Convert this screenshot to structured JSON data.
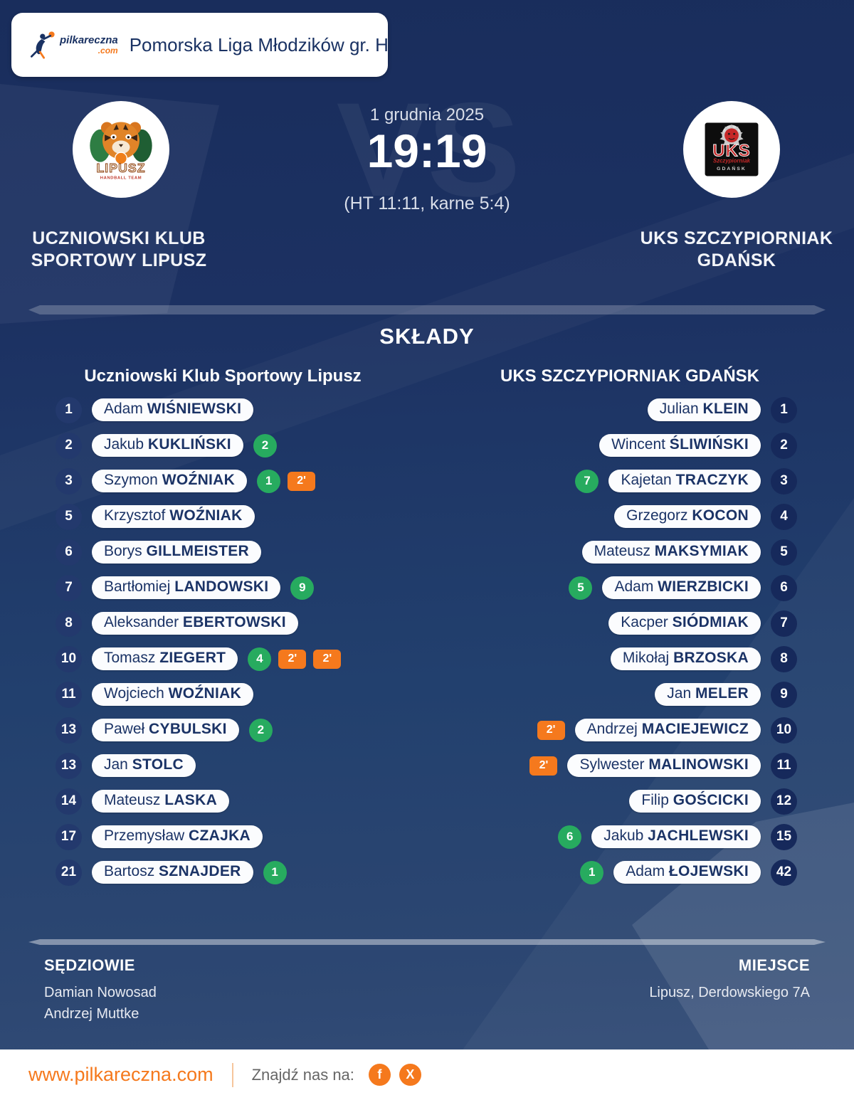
{
  "header": {
    "logo_text": "pilkareczna",
    "logo_tld": ".com",
    "title": "Pomorska Liga Młodzików gr. H"
  },
  "match": {
    "date": "1 grudnia 2025",
    "score": "19:19",
    "halftime": "(HT 11:11, karne 5:4)",
    "vs_watermark": "VS"
  },
  "teams": {
    "home": {
      "name": "UCZNIOWSKI KLUB SPORTOWY LIPUSZ",
      "logo_text": "LIPUSZ",
      "logo_subtext": "HANDBALL TEAM"
    },
    "away": {
      "name": "UKS SZCZYPIORNIAK GDAŃSK",
      "logo_text": "UKS",
      "logo_script": "Szczypiorniak",
      "logo_subtext": "GDAŃSK"
    }
  },
  "lineups": {
    "title": "SKŁADY",
    "home": {
      "header": "Uczniowski Klub Sportowy Lipusz",
      "players": [
        {
          "number": "1",
          "first": "Adam",
          "last": "WIŚNIEWSKI"
        },
        {
          "number": "2",
          "first": "Jakub",
          "last": "KUKLIŃSKI",
          "goals": "2"
        },
        {
          "number": "3",
          "first": "Szymon",
          "last": "WOŹNIAK",
          "goals": "1",
          "two_minutes": [
            "2'"
          ]
        },
        {
          "number": "5",
          "first": "Krzysztof",
          "last": "WOŹNIAK"
        },
        {
          "number": "6",
          "first": "Borys",
          "last": "GILLMEISTER"
        },
        {
          "number": "7",
          "first": "Bartłomiej",
          "last": "LANDOWSKI",
          "goals": "9"
        },
        {
          "number": "8",
          "first": "Aleksander",
          "last": "EBERTOWSKI"
        },
        {
          "number": "10",
          "first": "Tomasz",
          "last": "ZIEGERT",
          "goals": "4",
          "two_minutes": [
            "2'",
            "2'"
          ]
        },
        {
          "number": "11",
          "first": "Wojciech",
          "last": "WOŹNIAK"
        },
        {
          "number": "13",
          "first": "Paweł",
          "last": "CYBULSKI",
          "goals": "2"
        },
        {
          "number": "13",
          "first": "Jan",
          "last": "STOLC"
        },
        {
          "number": "14",
          "first": "Mateusz",
          "last": "LASKA"
        },
        {
          "number": "17",
          "first": "Przemysław",
          "last": "CZAJKA"
        },
        {
          "number": "21",
          "first": "Bartosz",
          "last": "SZNAJDER",
          "goals": "1"
        }
      ]
    },
    "away": {
      "header": "UKS SZCZYPIORNIAK GDAŃSK",
      "players": [
        {
          "number": "1",
          "first": "Julian",
          "last": "KLEIN"
        },
        {
          "number": "2",
          "first": "Wincent",
          "last": "ŚLIWIŃSKI"
        },
        {
          "number": "3",
          "first": "Kajetan",
          "last": "TRACZYK",
          "goals": "7"
        },
        {
          "number": "4",
          "first": "Grzegorz",
          "last": "KOCON"
        },
        {
          "number": "5",
          "first": "Mateusz",
          "last": "MAKSYMIAK"
        },
        {
          "number": "6",
          "first": "Adam",
          "last": "WIERZBICKI",
          "goals": "5"
        },
        {
          "number": "7",
          "first": "Kacper",
          "last": "SIÓDMIAK"
        },
        {
          "number": "8",
          "first": "Mikołaj",
          "last": "BRZOSKA"
        },
        {
          "number": "9",
          "first": "Jan",
          "last": "MELER"
        },
        {
          "number": "10",
          "first": "Andrzej",
          "last": "MACIEJEWICZ",
          "two_minutes": [
            "2'"
          ]
        },
        {
          "number": "11",
          "first": "Sylwester",
          "last": "MALINOWSKI",
          "two_minutes": [
            "2'"
          ]
        },
        {
          "number": "12",
          "first": "Filip",
          "last": "GOŚCICKI"
        },
        {
          "number": "15",
          "first": "Jakub",
          "last": "JACHLEWSKI",
          "goals": "6"
        },
        {
          "number": "42",
          "first": "Adam",
          "last": "ŁOJEWSKI",
          "goals": "1"
        }
      ]
    }
  },
  "officials": {
    "referees_label": "SĘDZIOWIE",
    "referees": [
      "Damian Nowosad",
      "Andrzej Muttke"
    ],
    "venue_label": "MIEJSCE",
    "venue": "Lipusz, Derdowskiego 7A"
  },
  "footer": {
    "website": "www.pilkareczna.com",
    "find_us": "Znajdź nas na:",
    "social": [
      {
        "name": "facebook",
        "label": "f"
      },
      {
        "name": "x",
        "label": "X"
      }
    ]
  },
  "colors": {
    "accent_orange": "#f5791d",
    "goal_green": "#27ab5f",
    "penalty_orange": "#f5791d",
    "navy_background": "#1c3162",
    "pill_text_navy": "#1b3366"
  }
}
